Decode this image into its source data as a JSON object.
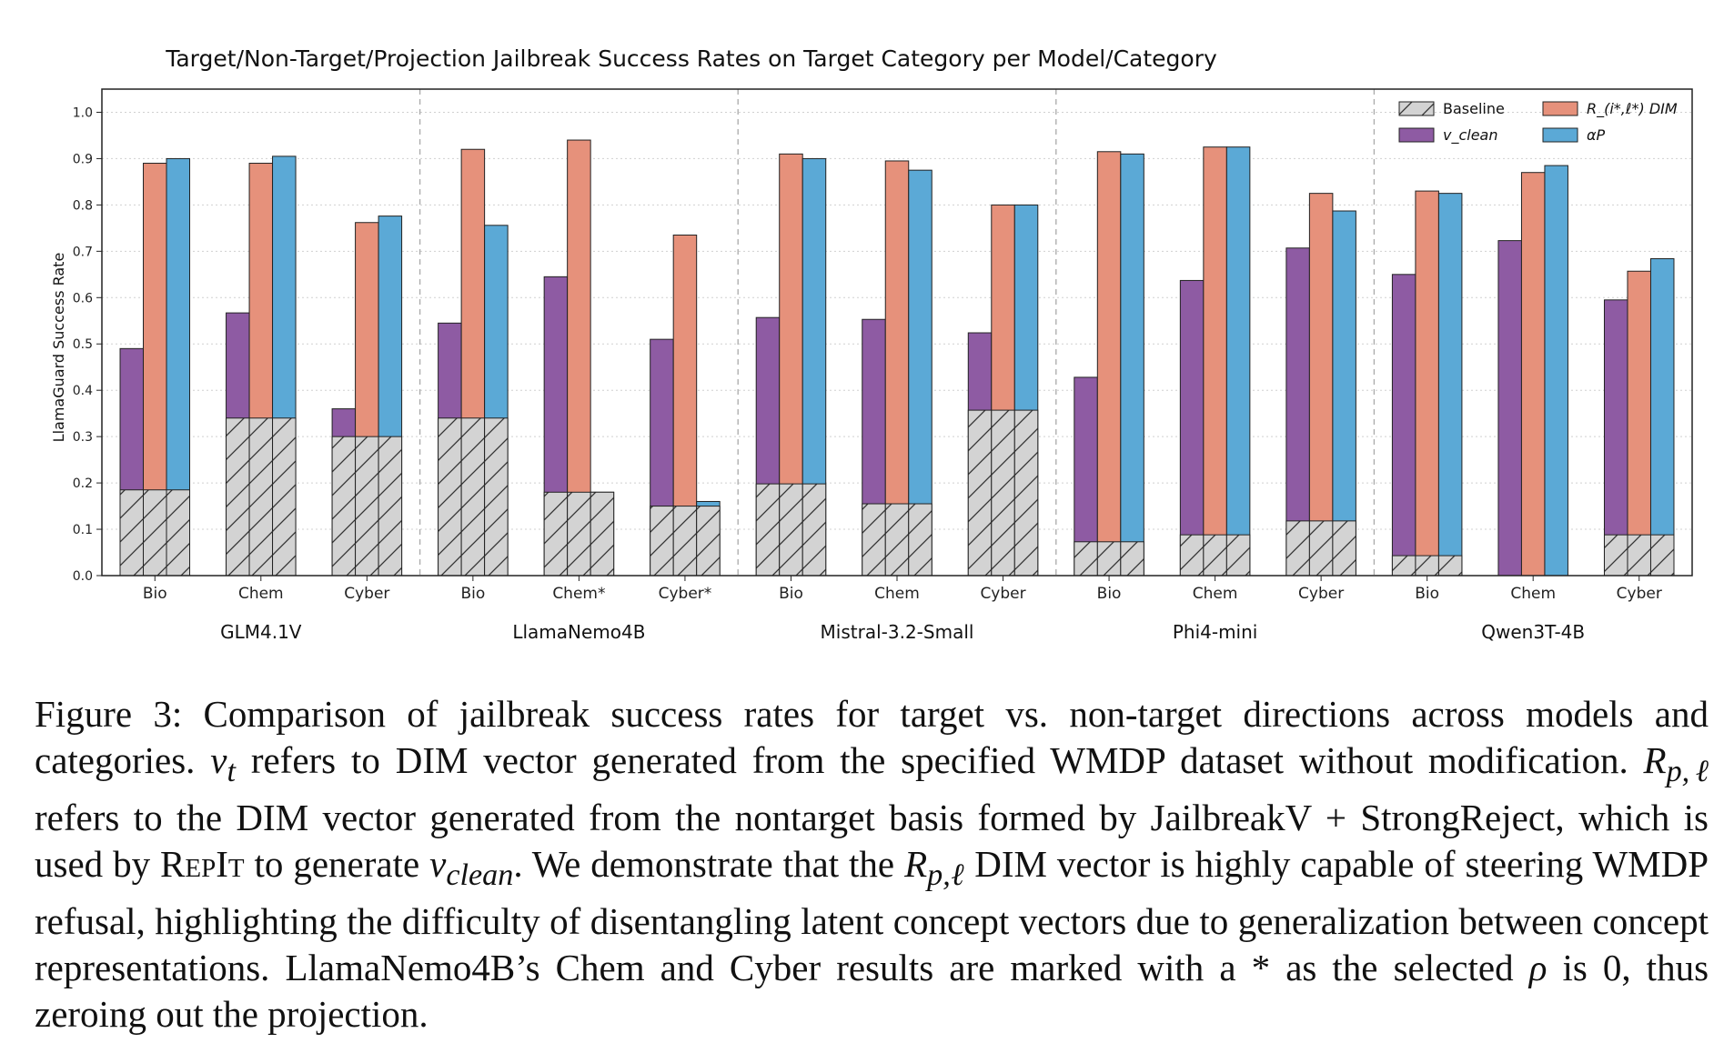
{
  "chart_data": {
    "type": "bar",
    "title": "Target/Non-Target/Projection Jailbreak Success Rates on Target Category per Model/Category",
    "ylabel": "LlamaGuard Success Rate",
    "ylim": [
      0,
      1.05
    ],
    "yticks": [
      "0.0",
      "0.1",
      "0.2",
      "0.3",
      "0.4",
      "0.5",
      "0.6",
      "0.7",
      "0.8",
      "0.9",
      "1.0"
    ],
    "grid": true,
    "legend_position": "top-right",
    "legend": [
      {
        "key": "baseline",
        "label": "Baseline",
        "color": "#d3d3d3",
        "hatch": true
      },
      {
        "key": "vclean",
        "label": "v_clean",
        "color": "#8e5ba3"
      },
      {
        "key": "r",
        "label": "R_(i*,ℓ*) DIM",
        "color": "#e6917b"
      },
      {
        "key": "alphaP",
        "label": "αP",
        "color": "#5ba9d6"
      }
    ],
    "groups": [
      {
        "model": "GLM4.1V",
        "categories": [
          {
            "label": "Bio",
            "baseline": 0.185,
            "vclean": 0.49,
            "r": 0.89,
            "alphaP": 0.9
          },
          {
            "label": "Chem",
            "baseline": 0.34,
            "vclean": 0.567,
            "r": 0.89,
            "alphaP": 0.905
          },
          {
            "label": "Cyber",
            "baseline": 0.3,
            "vclean": 0.36,
            "r": 0.762,
            "alphaP": 0.776
          }
        ]
      },
      {
        "model": "LlamaNemo4B",
        "categories": [
          {
            "label": "Bio",
            "baseline": 0.34,
            "vclean": 0.545,
            "r": 0.92,
            "alphaP": 0.756
          },
          {
            "label": "Chem*",
            "baseline": 0.18,
            "vclean": 0.645,
            "r": 0.94,
            "alphaP": 0.18
          },
          {
            "label": "Cyber*",
            "baseline": 0.15,
            "vclean": 0.51,
            "r": 0.735,
            "alphaP": 0.16
          }
        ]
      },
      {
        "model": "Mistral-3.2-Small",
        "categories": [
          {
            "label": "Bio",
            "baseline": 0.198,
            "vclean": 0.557,
            "r": 0.91,
            "alphaP": 0.9
          },
          {
            "label": "Chem",
            "baseline": 0.155,
            "vclean": 0.553,
            "r": 0.895,
            "alphaP": 0.875
          },
          {
            "label": "Cyber",
            "baseline": 0.357,
            "vclean": 0.524,
            "r": 0.8,
            "alphaP": 0.8
          }
        ]
      },
      {
        "model": "Phi4-mini",
        "categories": [
          {
            "label": "Bio",
            "baseline": 0.073,
            "vclean": 0.428,
            "r": 0.915,
            "alphaP": 0.91
          },
          {
            "label": "Chem",
            "baseline": 0.088,
            "vclean": 0.637,
            "r": 0.925,
            "alphaP": 0.925
          },
          {
            "label": "Cyber",
            "baseline": 0.118,
            "vclean": 0.707,
            "r": 0.825,
            "alphaP": 0.787
          }
        ]
      },
      {
        "model": "Qwen3T-4B",
        "categories": [
          {
            "label": "Bio",
            "baseline": 0.043,
            "vclean": 0.65,
            "r": 0.83,
            "alphaP": 0.825
          },
          {
            "label": "Chem",
            "baseline": 0.0,
            "vclean": 0.723,
            "r": 0.87,
            "alphaP": 0.885
          },
          {
            "label": "Cyber",
            "baseline": 0.088,
            "vclean": 0.595,
            "r": 0.657,
            "alphaP": 0.684
          }
        ]
      }
    ]
  },
  "caption": {
    "s1": "Figure 3: Comparison of jailbreak success rates for target vs. non-target directions across models and categories.",
    "s2": "refers to DIM vector generated from the specified WMDP dataset without modification.",
    "s3": "refers to the DIM vector generated from the nontarget basis formed by JailbreakV + StrongReject, which is used by",
    "repit": "RepIt",
    "s4": "to generate",
    "s5": ". We demonstrate that the",
    "s6": "DIM vector is highly capable of steering WMDP refusal, highlighting the difficulty of disentangling latent concept vectors due to generalization between concept representations. LlamaNemo4B’s Chem and Cyber results are marked with a * as the selected",
    "s7": "is 0, thus zeroing out the projection.",
    "vt_base": "v",
    "vt_sub": "t",
    "r_base": "R",
    "r_sub": "p,ℓ",
    "vclean_base": "v",
    "vclean_sub": "clean",
    "rho": "ρ"
  }
}
